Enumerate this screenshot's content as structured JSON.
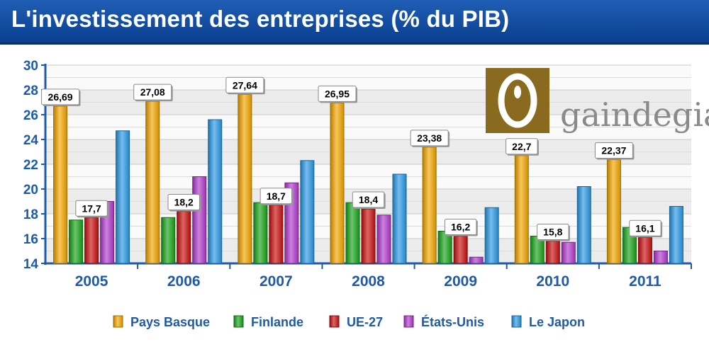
{
  "header": {
    "title": "L'investissement des entreprises (% du PIB)"
  },
  "logo": {
    "text": "gaindegia",
    "colors": {
      "box": "#8a6a1e",
      "text": "#8a8a8a"
    }
  },
  "chart_data": {
    "type": "bar",
    "title": "L'investissement des entreprises (% du PIB)",
    "xlabel": "",
    "ylabel": "",
    "ylim": [
      14,
      30
    ],
    "yticks": [
      14,
      16,
      18,
      20,
      22,
      24,
      26,
      28,
      30
    ],
    "grid": true,
    "legend_position": "bottom",
    "categories": [
      "2005",
      "2006",
      "2007",
      "2008",
      "2009",
      "2010",
      "2011"
    ],
    "series": [
      {
        "name": "Pays Basque",
        "color": "#f5a800",
        "values": [
          26.69,
          27.08,
          27.64,
          26.95,
          23.38,
          22.7,
          22.37
        ]
      },
      {
        "name": "Finlande",
        "color": "#1aa61a",
        "values": [
          17.5,
          17.7,
          18.9,
          18.9,
          16.6,
          16.2,
          16.9
        ]
      },
      {
        "name": "UE-27",
        "color": "#cc1111",
        "values": [
          17.7,
          18.2,
          18.7,
          18.4,
          16.2,
          15.8,
          16.1
        ]
      },
      {
        "name": "États-Unis",
        "color": "#b33ccf",
        "values": [
          19.0,
          21.0,
          20.5,
          17.9,
          14.5,
          15.7,
          15.0
        ]
      },
      {
        "name": "Le Japon",
        "color": "#2a9ae8",
        "values": [
          24.7,
          25.6,
          22.3,
          21.2,
          18.5,
          20.2,
          18.6
        ]
      }
    ],
    "data_labels": [
      {
        "category": "2005",
        "series": "Pays Basque",
        "text": "26,69"
      },
      {
        "category": "2005",
        "series": "UE-27",
        "text": "17,7"
      },
      {
        "category": "2006",
        "series": "Pays Basque",
        "text": "27,08"
      },
      {
        "category": "2006",
        "series": "UE-27",
        "text": "18,2"
      },
      {
        "category": "2007",
        "series": "Pays Basque",
        "text": "27,64"
      },
      {
        "category": "2007",
        "series": "UE-27",
        "text": "18,7"
      },
      {
        "category": "2008",
        "series": "Pays Basque",
        "text": "26,95"
      },
      {
        "category": "2008",
        "series": "UE-27",
        "text": "18,4"
      },
      {
        "category": "2009",
        "series": "Pays Basque",
        "text": "23,38"
      },
      {
        "category": "2009",
        "series": "UE-27",
        "text": "16,2"
      },
      {
        "category": "2010",
        "series": "Pays Basque",
        "text": "22,7"
      },
      {
        "category": "2010",
        "series": "UE-27",
        "text": "15,8"
      },
      {
        "category": "2011",
        "series": "Pays Basque",
        "text": "22,37"
      },
      {
        "category": "2011",
        "series": "UE-27",
        "text": "16,1"
      }
    ]
  }
}
